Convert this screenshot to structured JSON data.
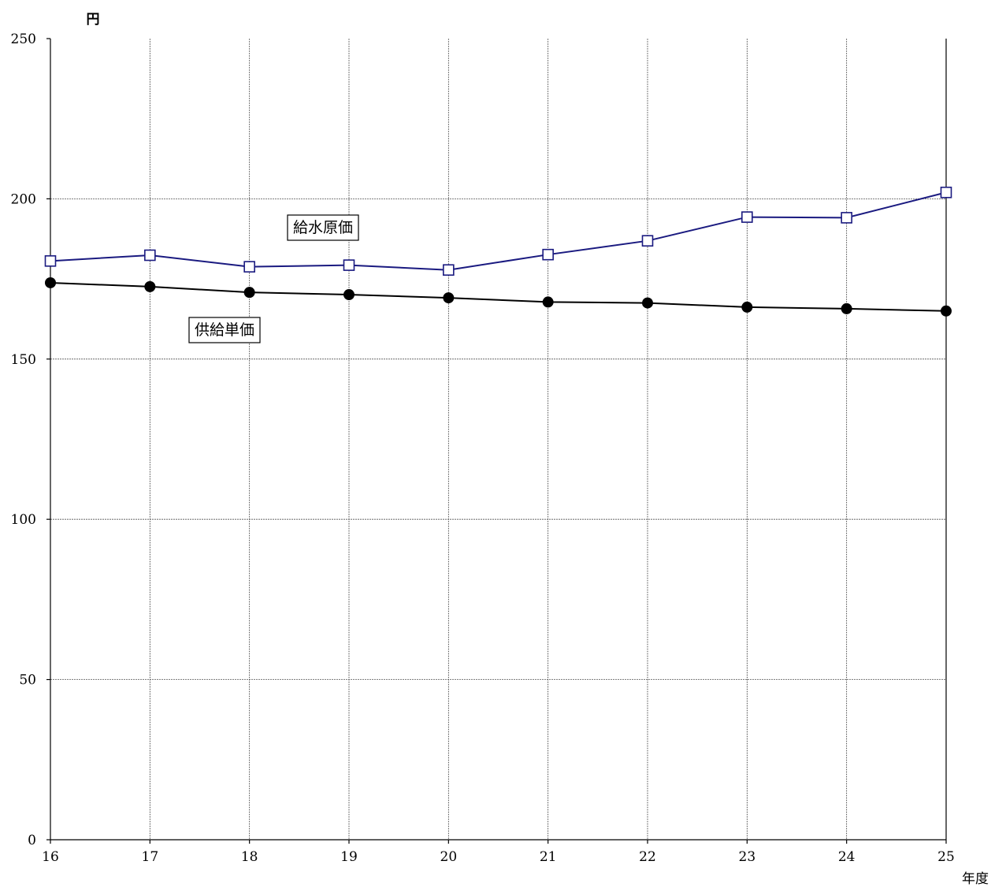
{
  "chart_data": {
    "type": "line",
    "ylabel": "円",
    "xlabel": "年度",
    "x": [
      16,
      17,
      18,
      19,
      20,
      21,
      22,
      23,
      24,
      25
    ],
    "ylim": [
      0,
      250
    ],
    "yticks": [
      0,
      50,
      100,
      150,
      200,
      250
    ],
    "grid": true,
    "series": [
      {
        "name": "給水原価",
        "marker": "square-open",
        "color": "#1a1a80",
        "values": [
          180.6,
          182.4,
          178.8,
          179.3,
          177.8,
          182.6,
          186.9,
          194.3,
          194.1,
          202.0
        ]
      },
      {
        "name": "供給単価",
        "marker": "circle-filled",
        "color": "#000000",
        "values": [
          173.8,
          172.6,
          170.8,
          170.1,
          169.1,
          167.8,
          167.5,
          166.2,
          165.7,
          165.0
        ]
      }
    ]
  }
}
